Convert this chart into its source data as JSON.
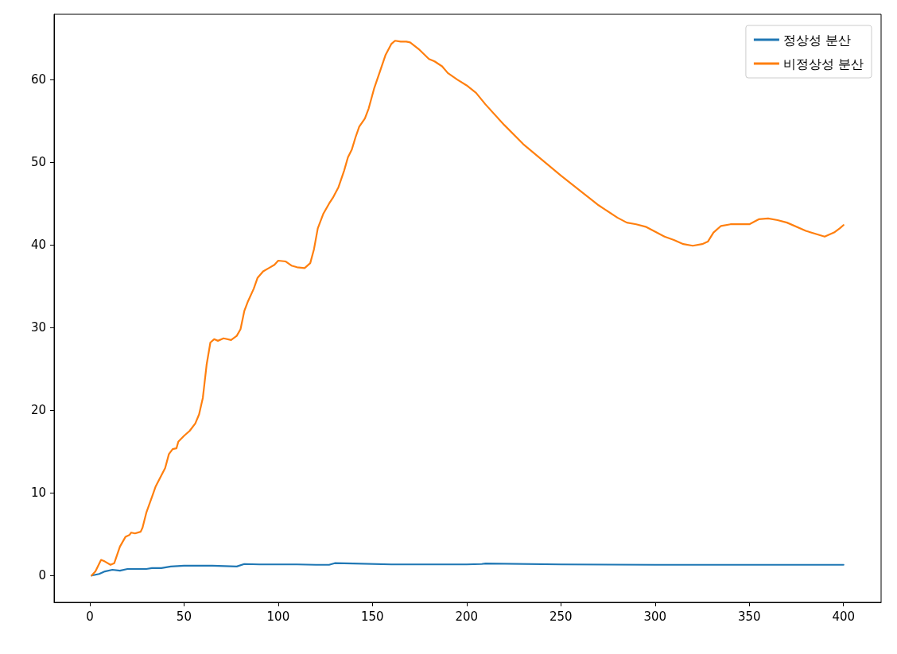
{
  "chart_data": {
    "type": "line",
    "xlim": [
      -18.95,
      419.95
    ],
    "xticks": [
      0,
      50,
      100,
      150,
      200,
      250,
      300,
      350,
      400
    ],
    "ylim": [
      -3.24,
      67.9
    ],
    "yticks": [
      0,
      10,
      20,
      30,
      40,
      50,
      60
    ],
    "grid": false,
    "legend": "top right",
    "series": [
      {
        "name": "정상성 분산",
        "color": "#1f77b4",
        "x": [
          1,
          5,
          8,
          12,
          16,
          20,
          25,
          30,
          33,
          38,
          43,
          50,
          60,
          65,
          78,
          82,
          90,
          100,
          110,
          120,
          127,
          130,
          140,
          160,
          170,
          200,
          208,
          210,
          250,
          300,
          350,
          400
        ],
        "values": [
          0,
          0.2,
          0.5,
          0.7,
          0.6,
          0.8,
          0.8,
          0.8,
          0.9,
          0.9,
          1.1,
          1.2,
          1.2,
          1.2,
          1.1,
          1.4,
          1.35,
          1.35,
          1.35,
          1.3,
          1.3,
          1.5,
          1.45,
          1.35,
          1.35,
          1.35,
          1.4,
          1.45,
          1.35,
          1.3,
          1.3,
          1.3
        ]
      },
      {
        "name": "비정상성 분산",
        "color": "#ff7f0e",
        "x": [
          1,
          3,
          6,
          8,
          11,
          13,
          16,
          19,
          21,
          22,
          24,
          27,
          28,
          30,
          33,
          35,
          40,
          42,
          44,
          46,
          47,
          50,
          53,
          56,
          58,
          60,
          62,
          64,
          66,
          68,
          71,
          75,
          78,
          80,
          82,
          84,
          87,
          89,
          92,
          95,
          98,
          100,
          104,
          107,
          110,
          114,
          117,
          119,
          121,
          124,
          127,
          129,
          132,
          135,
          137,
          139,
          141,
          143,
          146,
          148,
          151,
          154,
          157,
          160,
          162,
          165,
          168,
          170,
          175,
          180,
          183,
          187,
          190,
          195,
          200,
          205,
          210,
          220,
          230,
          240,
          250,
          260,
          270,
          280,
          285,
          290,
          295,
          300,
          305,
          310,
          315,
          320,
          325,
          328,
          331,
          335,
          340,
          345,
          350,
          355,
          360,
          365,
          370,
          380,
          390,
          395,
          398,
          400
        ],
        "values": [
          0,
          0.5,
          1.9,
          1.7,
          1.3,
          1.5,
          3.5,
          4.7,
          4.9,
          5.2,
          5.1,
          5.3,
          5.8,
          7.6,
          9.5,
          10.8,
          13.0,
          14.7,
          15.3,
          15.4,
          16.2,
          16.9,
          17.5,
          18.4,
          19.5,
          21.5,
          25.5,
          28.2,
          28.6,
          28.4,
          28.7,
          28.5,
          29.0,
          29.8,
          32.0,
          33.2,
          34.7,
          36.0,
          36.8,
          37.2,
          37.6,
          38.1,
          38.0,
          37.5,
          37.3,
          37.2,
          37.8,
          39.5,
          42.0,
          43.8,
          45.0,
          45.7,
          47.0,
          49.0,
          50.6,
          51.5,
          53.0,
          54.3,
          55.3,
          56.5,
          59.0,
          61.0,
          63.0,
          64.3,
          64.7,
          64.6,
          64.6,
          64.5,
          63.6,
          62.5,
          62.2,
          61.6,
          60.8,
          60.0,
          59.3,
          58.4,
          57.0,
          54.5,
          52.2,
          50.3,
          48.4,
          46.6,
          44.8,
          43.3,
          42.7,
          42.5,
          42.2,
          41.6,
          41.0,
          40.6,
          40.1,
          39.9,
          40.1,
          40.4,
          41.5,
          42.3,
          42.5,
          42.5,
          42.5,
          43.1,
          43.2,
          43.0,
          42.7,
          41.7,
          41.0,
          41.5,
          42.0,
          42.4
        ]
      }
    ]
  }
}
